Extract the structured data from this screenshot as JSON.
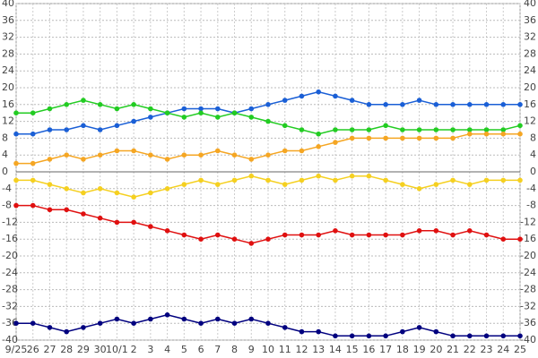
{
  "chart_data": {
    "type": "line",
    "categories": [
      "9/25",
      "26",
      "27",
      "28",
      "29",
      "30",
      "10/1",
      "2",
      "3",
      "4",
      "5",
      "6",
      "7",
      "8",
      "9",
      "10",
      "11",
      "12",
      "13",
      "14",
      "15",
      "16",
      "17",
      "18",
      "19",
      "20",
      "21",
      "22",
      "23",
      "24",
      "25"
    ],
    "series": [
      {
        "color": "#1a5fd6",
        "values": [
          9,
          9,
          10,
          10,
          11,
          10,
          11,
          12,
          13,
          14,
          15,
          15,
          15,
          14,
          15,
          16,
          17,
          18,
          19,
          18,
          17,
          16,
          16,
          16,
          17,
          16,
          16,
          16,
          16,
          16,
          16
        ]
      },
      {
        "color": "#22cc22",
        "values": [
          14,
          14,
          15,
          16,
          17,
          16,
          15,
          16,
          15,
          14,
          13,
          14,
          13,
          14,
          13,
          12,
          11,
          10,
          9,
          10,
          10,
          10,
          11,
          10,
          10,
          10,
          10,
          10,
          10,
          10,
          11
        ]
      },
      {
        "color": "#f5a623",
        "values": [
          2,
          2,
          3,
          4,
          3,
          4,
          5,
          5,
          4,
          3,
          4,
          4,
          5,
          4,
          3,
          4,
          5,
          5,
          6,
          7,
          8,
          8,
          8,
          8,
          8,
          8,
          8,
          9,
          9,
          9,
          9
        ]
      },
      {
        "color": "#f5d020",
        "values": [
          -2,
          -2,
          -3,
          -4,
          -5,
          -4,
          -5,
          -6,
          -5,
          -4,
          -3,
          -2,
          -3,
          -2,
          -1,
          -2,
          -3,
          -2,
          -1,
          -2,
          -1,
          -1,
          -2,
          -3,
          -4,
          -3,
          -2,
          -3,
          -2,
          -2,
          -2
        ]
      },
      {
        "color": "#e01010",
        "values": [
          -8,
          -8,
          -9,
          -9,
          -10,
          -11,
          -12,
          -12,
          -13,
          -14,
          -15,
          -16,
          -15,
          -16,
          -17,
          -16,
          -15,
          -15,
          -15,
          -14,
          -15,
          -15,
          -15,
          -15,
          -14,
          -14,
          -15,
          -14,
          -15,
          -16,
          -16
        ]
      },
      {
        "color": "#00007f",
        "values": [
          -36,
          -36,
          -37,
          -38,
          -37,
          -36,
          -35,
          -36,
          -35,
          -34,
          -35,
          -36,
          -35,
          -36,
          -35,
          -36,
          -37,
          -38,
          -38,
          -39,
          -39,
          -39,
          -39,
          -38,
          -37,
          -38,
          -39,
          -39,
          -39,
          -39,
          -39
        ]
      }
    ],
    "ylim": [
      -40,
      40
    ],
    "yticks": [
      -40,
      -36,
      -32,
      -28,
      -24,
      -20,
      -16,
      -12,
      -8,
      -4,
      0,
      4,
      8,
      12,
      16,
      20,
      24,
      28,
      32,
      36,
      40
    ],
    "grid": true
  }
}
